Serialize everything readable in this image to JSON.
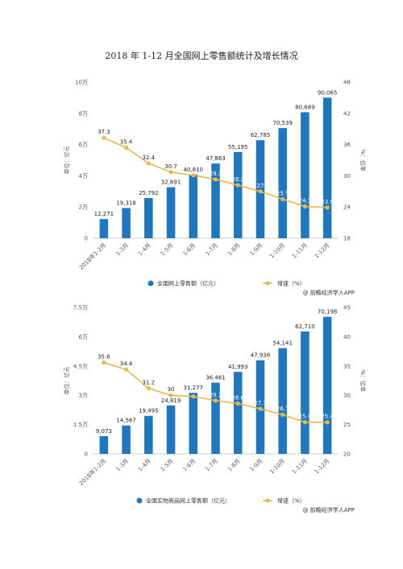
{
  "page": {
    "title": "2018 年 1-12 月全国网上零售额统计及增长情况"
  },
  "chart_data": [
    {
      "type": "bar",
      "categories": [
        "2018年1-2月",
        "1-3月",
        "1-4月",
        "1-5月",
        "1-6月",
        "1-7月",
        "1-8月",
        "1-9月",
        "1-10月",
        "1-11月",
        "1-12月"
      ],
      "series": [
        {
          "name": "全国网上零售额（亿元）",
          "type": "bar",
          "axis": "left",
          "color": "#1f77c0",
          "values": [
            12271,
            19318,
            25792,
            32691,
            40810,
            47863,
            55195,
            62785,
            70539,
            80689,
            90065
          ],
          "labels": [
            "12,271",
            "19,318",
            "25,792",
            "32,691",
            "40,810",
            "47,863",
            "55,195",
            "62,785",
            "70,539",
            "80,689",
            "90,065"
          ]
        },
        {
          "name": "增速（%）",
          "type": "line",
          "axis": "right",
          "color": "#e8b84a",
          "values": [
            37.3,
            35.4,
            32.4,
            30.7,
            30.1,
            29.3,
            28.2,
            27.0,
            25.5,
            24.1,
            23.9
          ],
          "labels": [
            "37.3",
            "35.4",
            "32.4",
            "30.7",
            "",
            "29.3",
            "28.2",
            "27",
            "25.5",
            "24.1",
            "23.9"
          ]
        }
      ],
      "ylabel_left": "单位：亿元",
      "ylabel_right": "%：位单",
      "ylim_left": [
        0,
        100000
      ],
      "yticks_left": [
        "0",
        "2万",
        "4万",
        "6万",
        "8万",
        "10万"
      ],
      "ylim_right": [
        18,
        48
      ],
      "yticks_right": [
        "18",
        "24",
        "30",
        "36",
        "42",
        "48"
      ],
      "legend_position": "bottom-center",
      "source": "@ 前瞻经济学人APP",
      "grid": false
    },
    {
      "type": "bar",
      "categories": [
        "2018年1-2月",
        "1-3月",
        "1-4月",
        "1-5月",
        "1-6月",
        "1-7月",
        "1-8月",
        "1-9月",
        "1-10月",
        "1-11月",
        "1-12月"
      ],
      "series": [
        {
          "name": "全国实物商品网上零售额（亿元）",
          "type": "bar",
          "axis": "left",
          "color": "#1f77c0",
          "values": [
            9073,
            14567,
            19495,
            24819,
            31277,
            36461,
            41993,
            47938,
            54141,
            62710,
            70198
          ],
          "labels": [
            "9,073",
            "14,567",
            "19,495",
            "24,819",
            "31,277",
            "36,461",
            "41,993",
            "47,938",
            "54,141",
            "62,710",
            "70,198"
          ]
        },
        {
          "name": "增速（%）",
          "type": "line",
          "axis": "right",
          "color": "#e8b84a",
          "values": [
            35.6,
            34.4,
            31.2,
            30.0,
            29.8,
            29.1,
            28.6,
            27.7,
            26.7,
            25.4,
            25.4
          ],
          "labels": [
            "35.6",
            "34.4",
            "31.2",
            "30",
            "",
            "29.1",
            "28.6",
            "27.7",
            "26.7",
            "25.4",
            "25.4"
          ]
        }
      ],
      "ylabel_left": "单位：亿元",
      "ylabel_right": "%：位单",
      "ylim_left": [
        0,
        75000
      ],
      "yticks_left": [
        "0",
        "1.5万",
        "3万",
        "4.5万",
        "6万",
        "7.5万"
      ],
      "ylim_right": [
        20,
        45
      ],
      "yticks_right": [
        "20",
        "25",
        "30",
        "35",
        "40",
        "45"
      ],
      "legend_position": "bottom-center",
      "source": "@ 前瞻经济学人APP",
      "grid": false
    }
  ]
}
